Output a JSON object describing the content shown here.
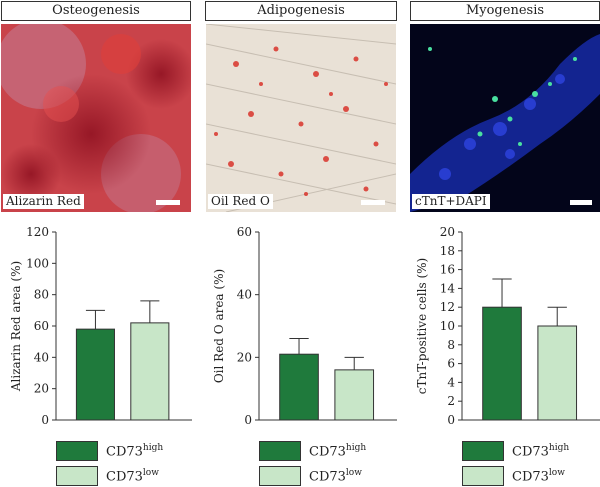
{
  "panels": [
    {
      "title": "Osteogenesis",
      "stain": "Alizarin Red"
    },
    {
      "title": "Adipogenesis",
      "stain": "Oil Red O"
    },
    {
      "title": "Myogenesis",
      "stain": "cTnT+DAPI"
    }
  ],
  "colors": {
    "high": "#1f7a3c",
    "low": "#c8e6c8",
    "alizarin": "#c0392b",
    "oilred": "#d9342b",
    "dapi": "#1a2fb8",
    "ctnt": "#49e0a0"
  },
  "legend": {
    "high_base": "CD73",
    "high_sup": "high",
    "low_base": "CD73",
    "low_sup": "low"
  },
  "chart_data": [
    {
      "type": "bar",
      "ylabel": "Alizarin Red area (%)",
      "ylim": [
        0,
        120
      ],
      "yticks": [
        "0",
        "20",
        "40",
        "60",
        "80",
        "100",
        "120"
      ],
      "series": [
        {
          "name": "CD73high",
          "values": [
            58
          ],
          "error": [
            12
          ]
        },
        {
          "name": "CD73low",
          "values": [
            62
          ],
          "error": [
            14
          ]
        }
      ]
    },
    {
      "type": "bar",
      "ylabel": "Oil Red O area (%)",
      "ylim": [
        0,
        60
      ],
      "yticks": [
        "0",
        "20",
        "40",
        "60"
      ],
      "series": [
        {
          "name": "CD73high",
          "values": [
            21
          ],
          "error": [
            5
          ]
        },
        {
          "name": "CD73low",
          "values": [
            16
          ],
          "error": [
            4
          ]
        }
      ]
    },
    {
      "type": "bar",
      "ylabel": "cTnT-positive cells (%)",
      "ylim": [
        0,
        20
      ],
      "yticks": [
        "0",
        "2",
        "4",
        "6",
        "8",
        "10",
        "12",
        "14",
        "16",
        "18",
        "20"
      ],
      "series": [
        {
          "name": "CD73high",
          "values": [
            12
          ],
          "error": [
            3
          ]
        },
        {
          "name": "CD73low",
          "values": [
            10
          ],
          "error": [
            2
          ]
        }
      ]
    }
  ]
}
